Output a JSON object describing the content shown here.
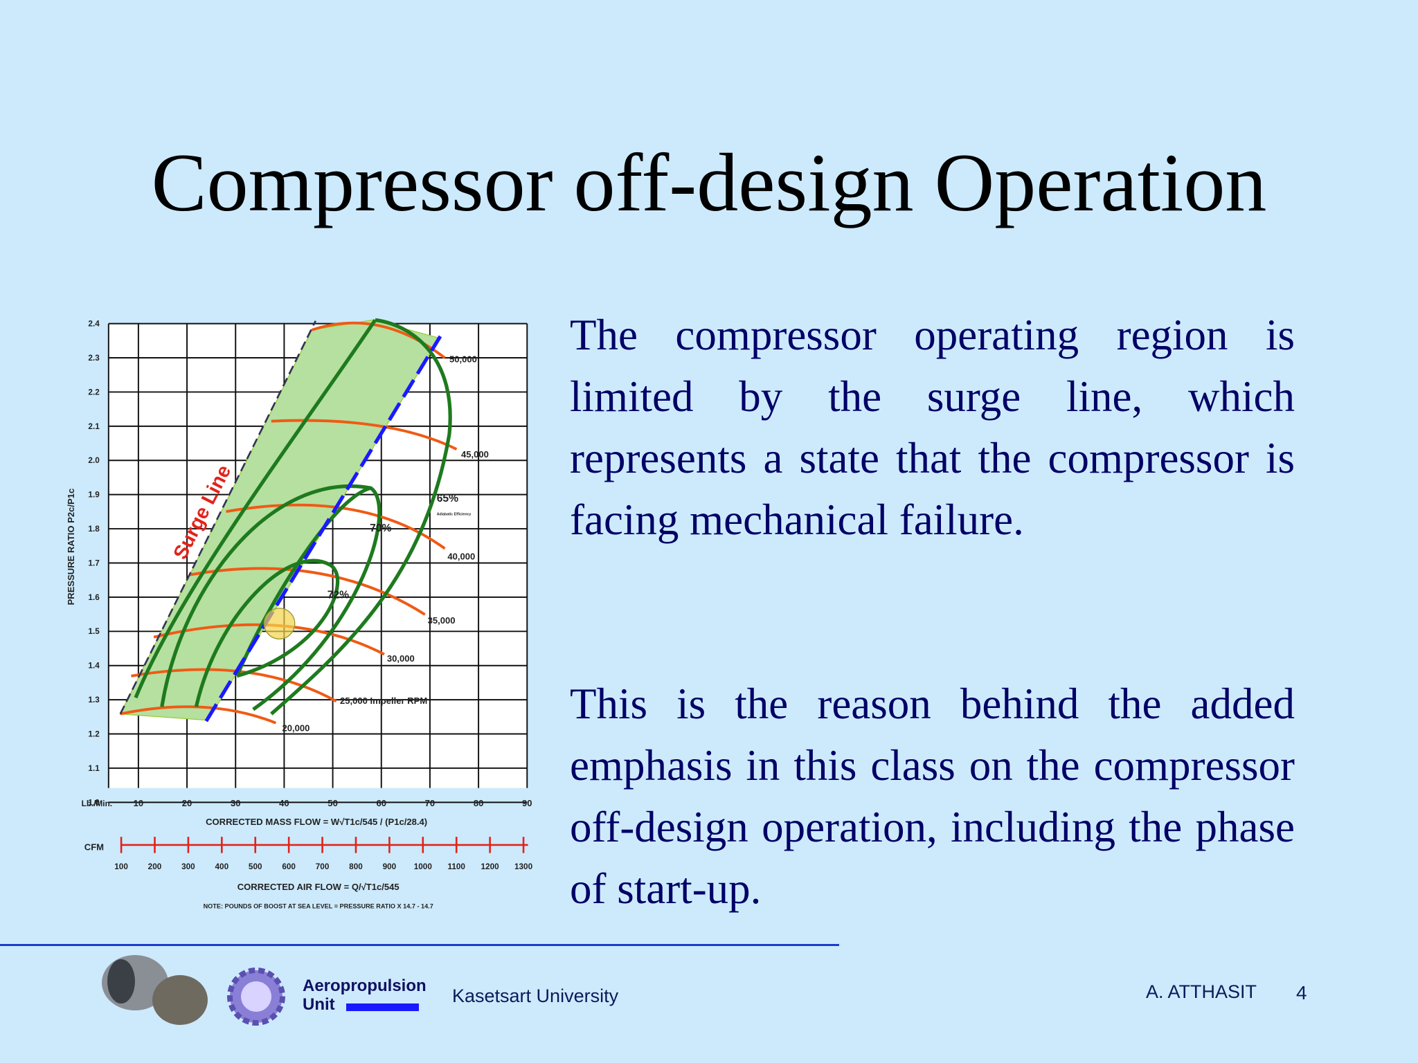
{
  "slide": {
    "title": "Compressor off-design Operation",
    "paragraphs": [
      "The compressor operating region is limited by the surge line, which represents a state that the compressor is facing mechanical failure.",
      "This is the reason behind the added emphasis in this class on the compressor off-design operation, including the phase of start-up."
    ],
    "figure": {
      "y_axis_label": "PRESSURE RATIO P2c/P1c",
      "y_ticks": [
        "2.4",
        "2.3",
        "2.2",
        "2.1",
        "2.0",
        "1.9",
        "1.8",
        "1.7",
        "1.6",
        "1.5",
        "1.4",
        "1.3",
        "1.2",
        "1.1",
        "1.0"
      ],
      "x_unit_label": "Lb./Min.",
      "x_ticks": [
        "10",
        "20",
        "30",
        "40",
        "50",
        "60",
        "70",
        "80",
        "90"
      ],
      "x_axis_label": "CORRECTED MASS FLOW = W√T1c/545 / (P1c/28.4)",
      "cfm_label": "CFM",
      "cfm_ticks": [
        "100",
        "200",
        "300",
        "400",
        "500",
        "600",
        "700",
        "800",
        "900",
        "1000",
        "1100",
        "1200",
        "1300"
      ],
      "cfm_axis_label": "CORRECTED AIR FLOW = Q/√T1c/545",
      "note": "NOTE: POUNDS OF BOOST AT SEA LEVEL = PRESSURE RATIO X 14.7 - 14.7",
      "surge_label": "Surge Line",
      "speed_labels": [
        "50,000",
        "45,000",
        "40,000",
        "35,000",
        "30,000",
        "25,000 Impeller RPM",
        "20,000"
      ],
      "efficiency_labels": [
        "65%",
        "70%",
        "72%"
      ],
      "efficiency_caption": "Adiabatic Efficiency"
    },
    "footer": {
      "unit_name": "Aeropropulsion",
      "unit_word": "Unit",
      "university": "Kasetsart University",
      "author": "A. ATTHASIT",
      "page": "4"
    }
  }
}
